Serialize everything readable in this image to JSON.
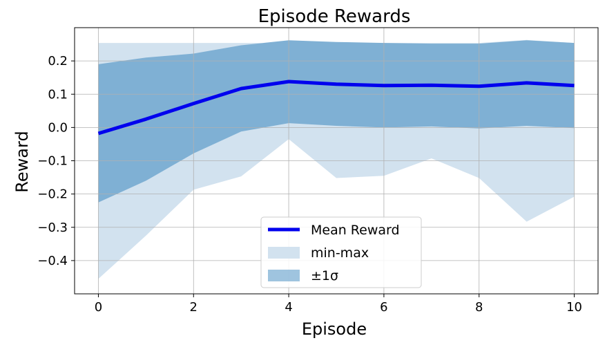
{
  "chart_data": {
    "type": "line",
    "title": "Episode Rewards",
    "xlabel": "Episode",
    "ylabel": "Reward",
    "xlim": [
      -0.5,
      10.5
    ],
    "ylim": [
      -0.5,
      0.3
    ],
    "x": [
      0,
      1,
      2,
      3,
      4,
      5,
      6,
      7,
      8,
      9,
      10
    ],
    "x_ticks": [
      0,
      2,
      4,
      6,
      8,
      10
    ],
    "x_tick_labels": [
      "0",
      "2",
      "4",
      "6",
      "8",
      "10"
    ],
    "y_ticks": [
      -0.4,
      -0.3,
      -0.2,
      -0.1,
      0.0,
      0.1,
      0.2
    ],
    "y_tick_labels": [
      "−0.4",
      "−0.3",
      "−0.2",
      "−0.1",
      "0.0",
      "0.1",
      "0.2"
    ],
    "grid": true,
    "legend_position": "bottom-center",
    "series": [
      {
        "name": "Mean Reward",
        "kind": "line",
        "color": "#0000ee",
        "values": [
          -0.018,
          0.025,
          0.072,
          0.117,
          0.138,
          0.13,
          0.126,
          0.127,
          0.124,
          0.134,
          0.126
        ]
      },
      {
        "name": "min-max",
        "kind": "band",
        "color": "#d2e2ef",
        "lower": [
          -0.455,
          -0.325,
          -0.187,
          -0.147,
          -0.035,
          -0.152,
          -0.145,
          -0.093,
          -0.152,
          -0.283,
          -0.208
        ],
        "upper": [
          0.254,
          0.254,
          0.254,
          0.254,
          0.254,
          0.254,
          0.254,
          0.254,
          0.254,
          0.263,
          0.254
        ]
      },
      {
        "name": "±1σ",
        "kind": "band",
        "color": "#7fb0d4",
        "lower": [
          -0.225,
          -0.16,
          -0.078,
          -0.012,
          0.013,
          0.005,
          0.0,
          0.003,
          -0.003,
          0.005,
          -0.002
        ],
        "upper": [
          0.19,
          0.21,
          0.222,
          0.247,
          0.262,
          0.257,
          0.254,
          0.252,
          0.252,
          0.262,
          0.254
        ]
      }
    ]
  }
}
